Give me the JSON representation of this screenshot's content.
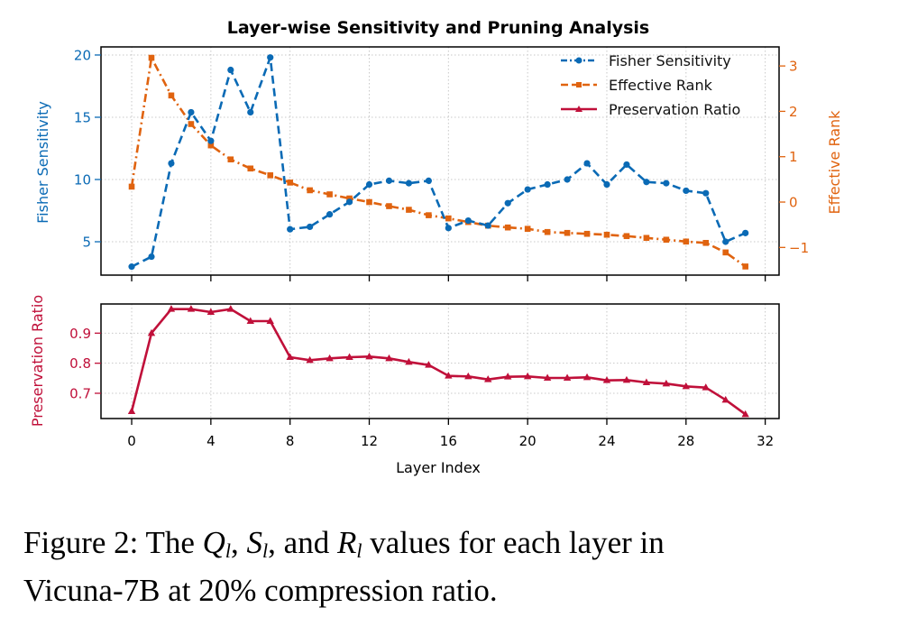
{
  "chart_data": [
    {
      "panel": "top",
      "type": "line",
      "title": "Layer-wise Sensitivity and Pruning Analysis",
      "xlabel": "",
      "ylabel": "Fisher Sensitivity",
      "ylabel_right": "Effective Rank",
      "x": [
        0,
        1,
        2,
        3,
        4,
        5,
        6,
        7,
        8,
        9,
        10,
        11,
        12,
        13,
        14,
        15,
        16,
        17,
        18,
        19,
        20,
        21,
        22,
        23,
        24,
        25,
        26,
        27,
        28,
        29,
        30,
        31
      ],
      "xlim": [
        -1.55,
        32.7
      ],
      "ylim": [
        2.32,
        20.65
      ],
      "ylim_right": [
        -1.61,
        3.42
      ],
      "x_ticks": [
        0,
        4,
        8,
        12,
        16,
        20,
        24,
        28,
        32
      ],
      "y_ticks": [
        {
          "value": 5,
          "label": "5"
        },
        {
          "value": 10,
          "label": "10"
        },
        {
          "value": 15,
          "label": "15"
        },
        {
          "value": 20,
          "label": "20"
        }
      ],
      "y_ticks_right": [
        {
          "value": -1,
          "label": "−1"
        },
        {
          "value": 0,
          "label": "0"
        },
        {
          "value": 1,
          "label": "1"
        },
        {
          "value": 2,
          "label": "2"
        },
        {
          "value": 3,
          "label": "3"
        }
      ],
      "grid": true,
      "legend_position": "top-right",
      "series": [
        {
          "name": "Fisher Sensitivity",
          "axis": "left",
          "color": "#0a6ab5",
          "marker": "circle",
          "linestyle": "dashed",
          "values": [
            3.0,
            3.8,
            11.3,
            15.4,
            13.1,
            18.8,
            15.4,
            19.8,
            6.0,
            6.2,
            7.2,
            8.2,
            9.6,
            9.9,
            9.7,
            9.9,
            6.1,
            6.7,
            6.3,
            8.1,
            9.2,
            9.6,
            10.0,
            11.3,
            9.6,
            11.2,
            9.8,
            9.7,
            9.1,
            8.9,
            5.0,
            5.7
          ]
        },
        {
          "name": "Effective Rank",
          "axis": "right",
          "color": "#e0630f",
          "marker": "square",
          "linestyle": "dash-dot",
          "values": [
            0.34,
            3.18,
            2.35,
            1.72,
            1.25,
            0.94,
            0.74,
            0.59,
            0.43,
            0.26,
            0.17,
            0.08,
            0.0,
            -0.09,
            -0.17,
            -0.29,
            -0.36,
            -0.44,
            -0.52,
            -0.56,
            -0.59,
            -0.66,
            -0.68,
            -0.7,
            -0.72,
            -0.75,
            -0.79,
            -0.83,
            -0.87,
            -0.9,
            -1.11,
            -1.42
          ]
        },
        {
          "name": "Preservation Ratio",
          "axis": "bottom-panel",
          "color": "#c0103a",
          "marker": "triangle",
          "linestyle": "solid",
          "legend_only": true
        }
      ]
    },
    {
      "panel": "bottom",
      "type": "line",
      "xlabel": "Layer Index",
      "ylabel": "Preservation Ratio",
      "x": [
        0,
        1,
        2,
        3,
        4,
        5,
        6,
        7,
        8,
        9,
        10,
        11,
        12,
        13,
        14,
        15,
        16,
        17,
        18,
        19,
        20,
        21,
        22,
        23,
        24,
        25,
        26,
        27,
        28,
        29,
        30,
        31
      ],
      "xlim": [
        -1.55,
        32.7
      ],
      "ylim": [
        0.616,
        0.997
      ],
      "x_ticks": [
        {
          "value": 0,
          "label": "0"
        },
        {
          "value": 4,
          "label": "4"
        },
        {
          "value": 8,
          "label": "8"
        },
        {
          "value": 12,
          "label": "12"
        },
        {
          "value": 16,
          "label": "16"
        },
        {
          "value": 20,
          "label": "20"
        },
        {
          "value": 24,
          "label": "24"
        },
        {
          "value": 28,
          "label": "28"
        },
        {
          "value": 32,
          "label": "32"
        }
      ],
      "y_ticks": [
        {
          "value": 0.7,
          "label": "0.7"
        },
        {
          "value": 0.8,
          "label": "0.8"
        },
        {
          "value": 0.9,
          "label": "0.9"
        }
      ],
      "grid": true,
      "series": [
        {
          "name": "Preservation Ratio",
          "color": "#c0103a",
          "marker": "triangle",
          "linestyle": "solid",
          "values": [
            0.64,
            0.9,
            0.98,
            0.98,
            0.97,
            0.98,
            0.94,
            0.94,
            0.82,
            0.81,
            0.816,
            0.82,
            0.822,
            0.816,
            0.804,
            0.794,
            0.758,
            0.756,
            0.746,
            0.755,
            0.756,
            0.751,
            0.751,
            0.753,
            0.743,
            0.744,
            0.736,
            0.732,
            0.723,
            0.719,
            0.678,
            0.63
          ]
        }
      ]
    }
  ],
  "caption": {
    "prefix": "Figure 2: The ",
    "q_symbol": "Q",
    "s_symbol": "S",
    "r_symbol": "R",
    "subscript": "l",
    "sep1": ", ",
    "sep2": ", and ",
    "line1_suffix": " values for each layer in",
    "line2": "Vicuna-7B at 20% compression ratio."
  }
}
